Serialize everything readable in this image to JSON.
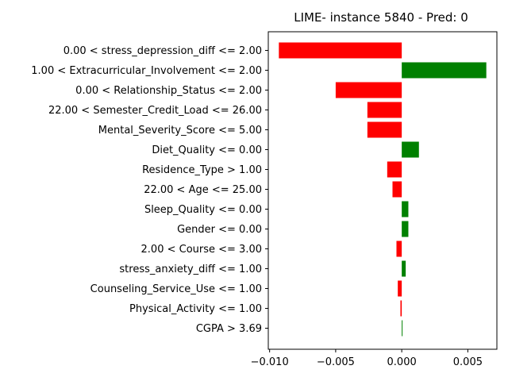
{
  "chart_data": {
    "type": "bar",
    "orientation": "horizontal",
    "title": "LIME- instance 5840 - Pred: 0",
    "xlabel": "",
    "ylabel": "",
    "xlim": [
      -0.0101,
      0.0072
    ],
    "xticks": [
      -0.01,
      -0.005,
      0.0,
      0.005
    ],
    "xtick_labels": [
      "−0.010",
      "−0.005",
      "0.000",
      "0.005"
    ],
    "grid": false,
    "legend": "none",
    "colors": {
      "positive": "#008000",
      "negative": "#ff0000"
    },
    "categories": [
      "0.00 < stress_depression_diff <= 2.00",
      "1.00 < Extracurricular_Involvement <= 2.00",
      "0.00 < Relationship_Status <= 2.00",
      "22.00 < Semester_Credit_Load <= 26.00",
      "Mental_Severity_Score <= 5.00",
      "Diet_Quality <= 0.00",
      "Residence_Type > 1.00",
      "22.00 < Age <= 25.00",
      "Sleep_Quality <= 0.00",
      "Gender <= 0.00",
      "2.00 < Course <= 3.00",
      "stress_anxiety_diff <= 1.00",
      "Counseling_Service_Use <= 1.00",
      "Physical_Activity <= 1.00",
      "CGPA > 3.69"
    ],
    "values": [
      -0.0093,
      0.0064,
      -0.005,
      -0.0026,
      -0.0026,
      0.0013,
      -0.0011,
      -0.0007,
      0.0005,
      0.0005,
      -0.0004,
      0.0003,
      -0.0003,
      -0.0001,
      5e-05
    ]
  }
}
